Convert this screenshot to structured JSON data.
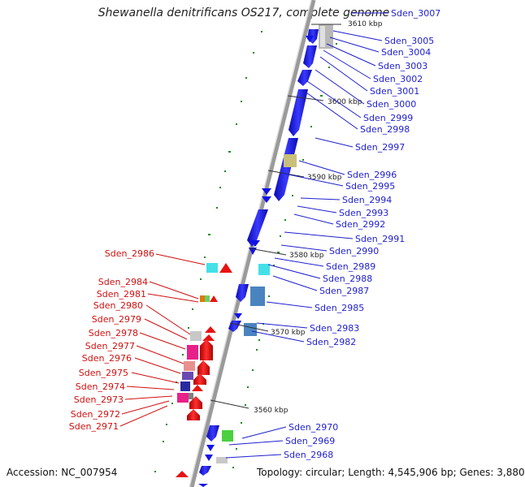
{
  "title": "Shewanella denitrificans OS217, complete genome",
  "footer": {
    "accession": "Accession: NC_007954",
    "topology": "Topology: circular; Length: 4,545,906 bp; Genes: 3,880"
  },
  "kbp_ticks": [
    "3610 kbp",
    "3600 kbp",
    "3590 kbp",
    "3580 kbp",
    "3570 kbp",
    "3560 kbp"
  ],
  "colors": {
    "forward_strand_gene": "#1212e8",
    "reverse_strand_gene": "#e81212",
    "backbone": "#888888",
    "gc_dots": "#1a8a1a",
    "label_forward": "#1f1fcf",
    "label_reverse": "#d01010"
  },
  "genes_forward": [
    "Sden_3007",
    "Sden_3005",
    "Sden_3004",
    "Sden_3003",
    "Sden_3002",
    "Sden_3001",
    "Sden_3000",
    "Sden_2999",
    "Sden_2998",
    "Sden_2997",
    "Sden_2996",
    "Sden_2995",
    "Sden_2994",
    "Sden_2993",
    "Sden_2992",
    "Sden_2991",
    "Sden_2990",
    "Sden_2989",
    "Sden_2988",
    "Sden_2987",
    "Sden_2985",
    "Sden_2983",
    "Sden_2982",
    "Sden_2970",
    "Sden_2969",
    "Sden_2968"
  ],
  "genes_reverse": [
    "Sden_2986",
    "Sden_2984",
    "Sden_2981",
    "Sden_2980",
    "Sden_2979",
    "Sden_2978",
    "Sden_2977",
    "Sden_2976",
    "Sden_2975",
    "Sden_2974",
    "Sden_2973",
    "Sden_2972",
    "Sden_2971"
  ]
}
